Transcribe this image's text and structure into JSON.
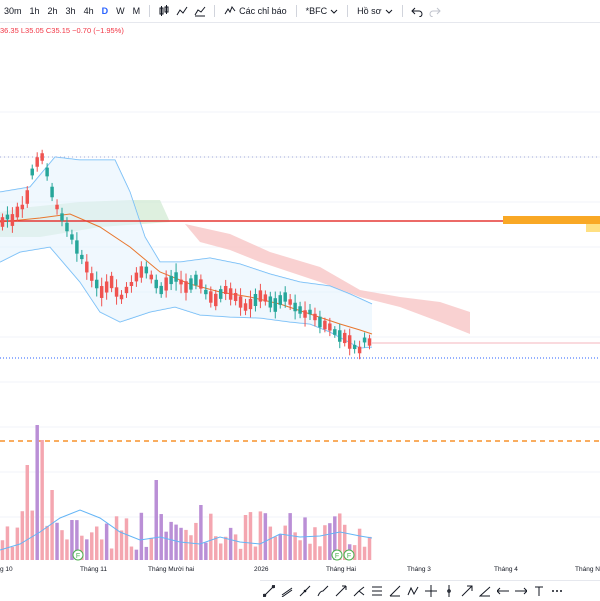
{
  "toolbar": {
    "timeframes": [
      "30m",
      "1h",
      "2h",
      "3h",
      "4h",
      "D",
      "W",
      "M"
    ],
    "active_timeframe": "D",
    "indicators_label": "Các chỉ báo",
    "symbol_label": "*BFC",
    "profile_label": "Hồ sơ"
  },
  "legend": {
    "text": "36.35 L35.05 C35.15 −0.70 (−1.95%)"
  },
  "time_axis": [
    "g 10",
    "Tháng 11",
    "Tháng Mười hai",
    "2026",
    "Tháng Hai",
    "Tháng 3",
    "Tháng 4",
    "Tháng N"
  ],
  "markers": [
    "F",
    "F",
    "F"
  ],
  "colors": {
    "up": "#26a69a",
    "down": "#ef5350",
    "bollinger": "#64b5f6",
    "ma": "#e8772e",
    "resistance_line": "#e53935",
    "orange_dash": "#f57c00",
    "dotted_blue": "#2962ff",
    "cloud_red": "#f8c6c6",
    "cloud_green": "#c8e6c9",
    "volume_pink": "#f4a6b0",
    "volume_purple": "#ba8fd6"
  },
  "icons": [
    "candles-icon",
    "bar-chart-icon",
    "indicators-icon",
    "chevron-down-icon",
    "undo-icon",
    "redo-icon"
  ],
  "draw_tools": [
    "trend-line-icon",
    "ray-icon",
    "channel-icon",
    "brush-icon",
    "measure-icon",
    "pitchfork-icon",
    "fib-icon",
    "ruler-icon",
    "crosshair-icon",
    "zoom-icon",
    "arrow-icon",
    "text-icon",
    "shape-icon",
    "magnet-icon",
    "lock-icon",
    "eye-icon",
    "trash-icon"
  ]
}
